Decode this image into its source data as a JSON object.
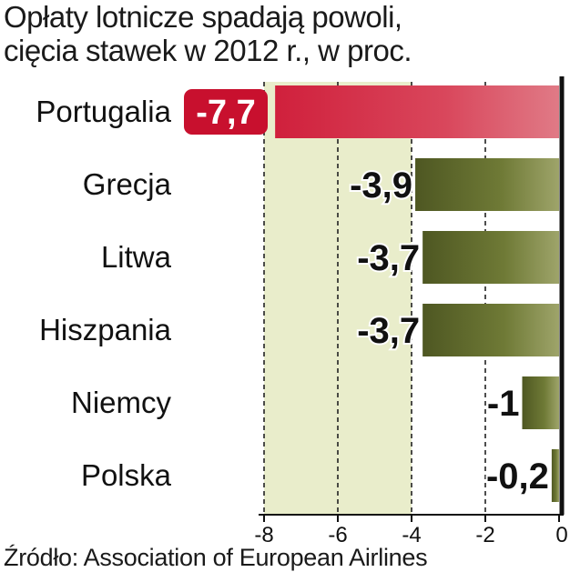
{
  "title_lines": [
    "Opłaty lotnicze spadają powoli,",
    "cięcia stawek w 2012 r., w proc."
  ],
  "source": "Źródło: Association of European Airlines",
  "colors": {
    "background": "#ffffff",
    "shaded_zone": "#e9edcb",
    "bar_olive": "#6b7534",
    "bar_highlight": "#d42a44",
    "label_highlight_bg": "#c8102e",
    "axis": "#111111"
  },
  "chart_data": {
    "type": "bar",
    "orientation": "horizontal",
    "title": "Opłaty lotnicze spadają powoli, cięcia stawek w 2012 r., w proc.",
    "categories": [
      "Portugalia",
      "Grecja",
      "Litwa",
      "Hiszpania",
      "Niemcy",
      "Polska"
    ],
    "values": [
      -7.7,
      -3.9,
      -3.7,
      -3.7,
      -1,
      -0.2
    ],
    "value_labels": [
      "-7,7",
      "-3,9",
      "-3,7",
      "-3,7",
      "-1",
      "-0,2"
    ],
    "highlight_index": 0,
    "xlim": [
      -8,
      0
    ],
    "x_ticks": [
      -8,
      -6,
      -4,
      -2,
      0
    ],
    "x_tick_labels": [
      "-8",
      "-6",
      "-4",
      "-2",
      "0"
    ],
    "grid": "dashed vertical",
    "xlabel": "",
    "ylabel": ""
  }
}
